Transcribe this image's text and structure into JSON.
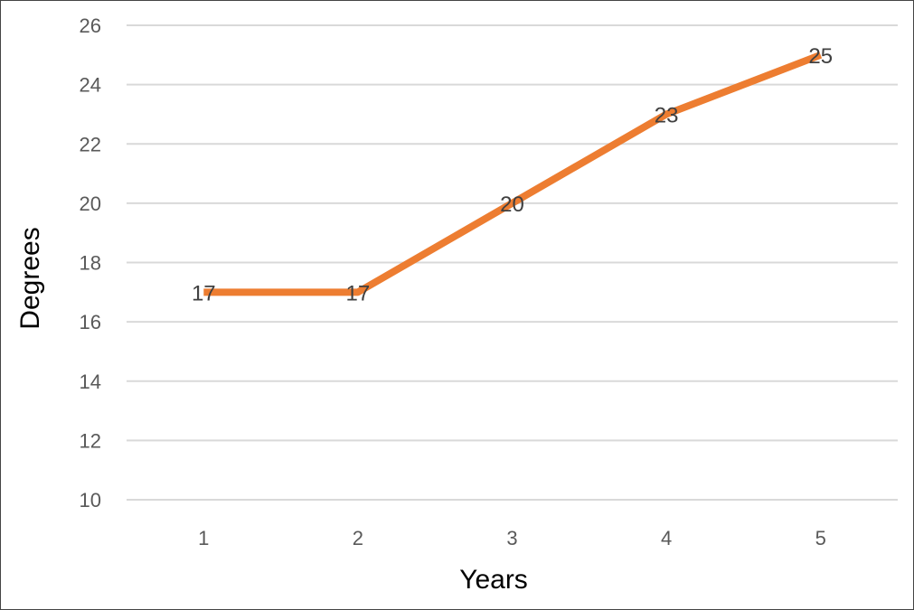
{
  "chart_data": {
    "type": "line",
    "title": "",
    "xlabel": "Years",
    "ylabel": "Degrees",
    "categories": [
      "1",
      "2",
      "3",
      "4",
      "5"
    ],
    "series": [
      {
        "values": [
          17,
          17,
          20,
          23,
          25
        ],
        "color": "#ED7D31"
      }
    ],
    "ylim": [
      10,
      26
    ],
    "yticks": [
      10,
      12,
      14,
      16,
      18,
      20,
      22,
      24,
      26
    ],
    "ytick_labels": [
      "10",
      "12",
      "14",
      "16",
      "18",
      "20",
      "22",
      "24",
      "26"
    ],
    "data_labels": [
      "17",
      "17",
      "20",
      "23",
      "25"
    ],
    "grid": true,
    "gridline_color": "#D9D9D9",
    "legend": "none"
  }
}
